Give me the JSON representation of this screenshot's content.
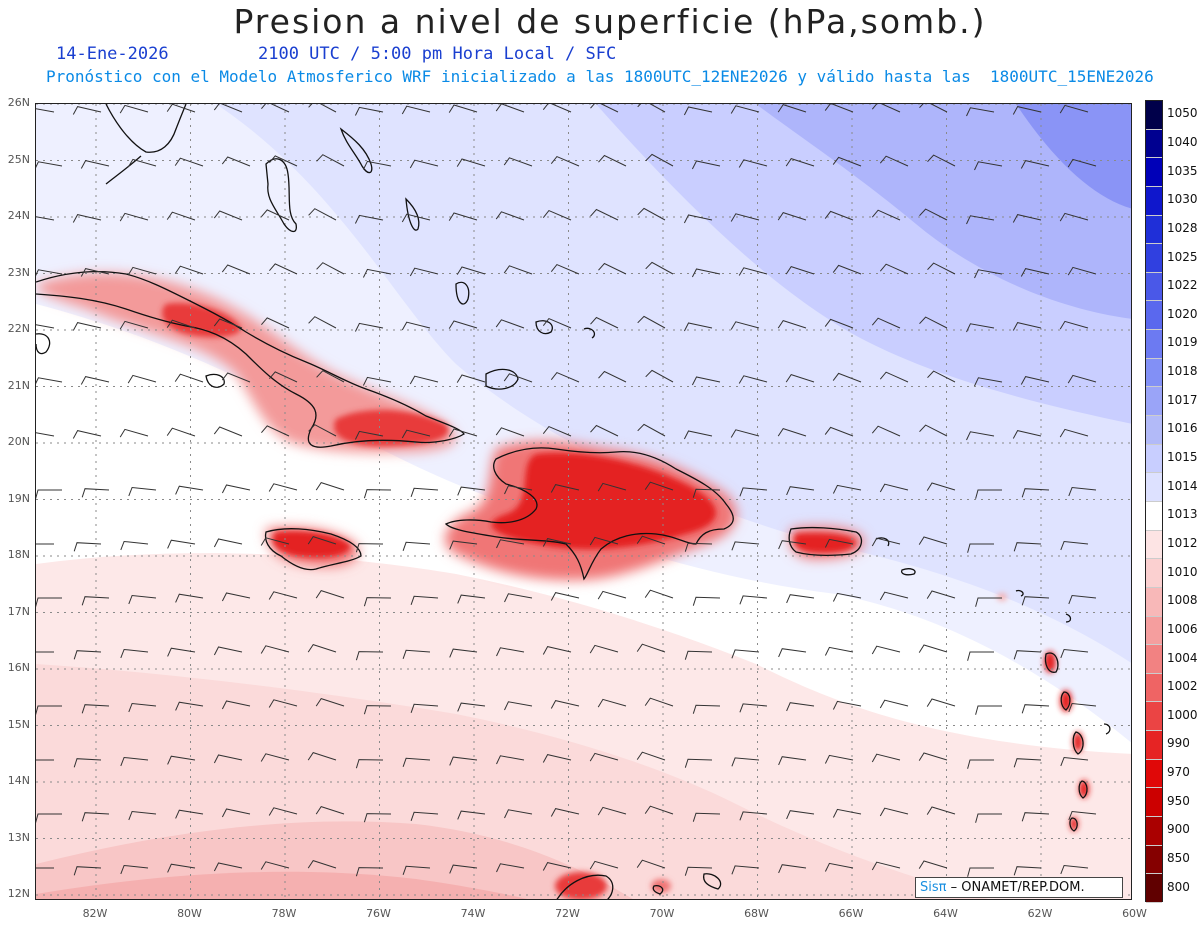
{
  "header": {
    "title": "Presion a nivel de superficie (hPa,somb.)",
    "date": "14-Ene-2026",
    "time_info": "2100 UTC / 5:00 pm Hora Local / SFC",
    "model_info": "Pronóstico con el Modelo Atmosferico WRF inicializado a las 1800UTC_12ENE2026 y válido hasta las  1800UTC_15ENE2026"
  },
  "axes": {
    "lat_labels": [
      "26N",
      "25N",
      "24N",
      "23N",
      "22N",
      "21N",
      "20N",
      "19N",
      "18N",
      "17N",
      "16N",
      "15N",
      "14N",
      "13N",
      "12N"
    ],
    "lon_labels": [
      "82W",
      "80W",
      "78W",
      "76W",
      "74W",
      "72W",
      "70W",
      "68W",
      "66W",
      "64W",
      "62W",
      "60W"
    ]
  },
  "colorbar": {
    "levels": [
      "1050",
      "1040",
      "1035",
      "1030",
      "1028",
      "1025",
      "1022",
      "1020",
      "1019",
      "1018",
      "1017",
      "1016",
      "1015",
      "1014",
      "1013",
      "1012",
      "1010",
      "1008",
      "1006",
      "1004",
      "1002",
      "1000",
      "990",
      "970",
      "950",
      "900",
      "850",
      "800"
    ],
    "colors": [
      "#00004a",
      "#000090",
      "#0000b8",
      "#0f17cc",
      "#1f2fd8",
      "#3040e0",
      "#4a58e8",
      "#5a68ee",
      "#6c7af2",
      "#8290f6",
      "#9aa4f8",
      "#b2baf8",
      "#c8ceff",
      "#dde1ff",
      "#ffffff",
      "#fde4e4",
      "#fbd0d0",
      "#f8b8b8",
      "#f59e9e",
      "#f28282",
      "#ef6464",
      "#eb4444",
      "#e62424",
      "#e00808",
      "#cc0000",
      "#aa0000",
      "#850000",
      "#600000"
    ]
  },
  "credit": {
    "brand": "Sisπ",
    "text": "– ONAMET/REP.DOM."
  }
}
